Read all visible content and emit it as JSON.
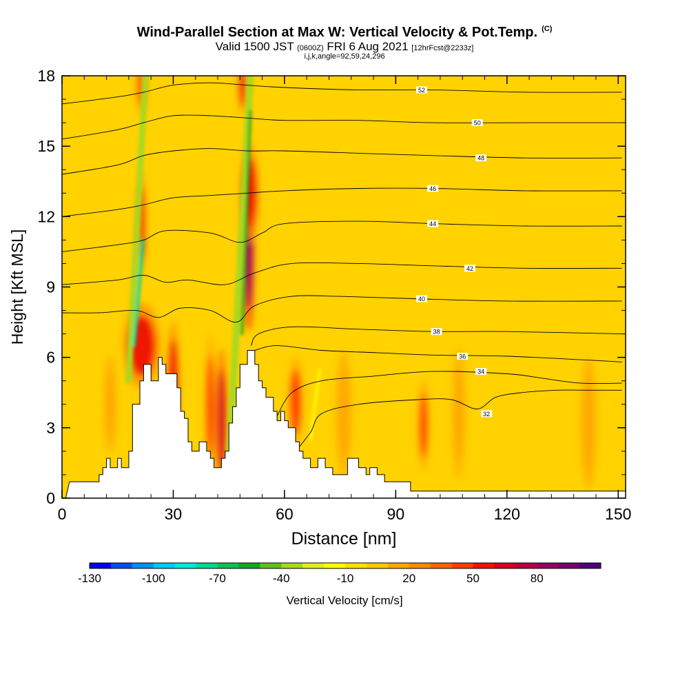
{
  "title": {
    "main": "Wind-Parallel Section at Max W: Vertical Velocity & Pot.Temp.",
    "mark": "(C)",
    "valid_prefix": "Valid 1500 JST",
    "valid_small": "(0600Z)",
    "valid_mid": "FRI 6 Aug 2021",
    "valid_fcst": "[12hrFcst@2233z]",
    "subline": "i,j,k,angle=92,59,24,296"
  },
  "colorbar": {
    "label": "Vertical Velocity [cm/s]",
    "tick_labels": [
      "-130",
      "-100",
      "-70",
      "-40",
      "-10",
      "20",
      "50",
      "80"
    ],
    "colors": [
      "#0000f0",
      "#0050f0",
      "#0090f0",
      "#00c8f0",
      "#00e8d8",
      "#00d890",
      "#10c050",
      "#10a820",
      "#60c020",
      "#a8d820",
      "#e0ec20",
      "#ffff00",
      "#ffe000",
      "#ffc800",
      "#ffa800",
      "#ff8c00",
      "#ff6400",
      "#ff3c00",
      "#f01400",
      "#d80020",
      "#b80040",
      "#960060",
      "#780070",
      "#500080"
    ]
  },
  "chart_data": {
    "type": "heatmap",
    "xlabel": "Distance [nm]",
    "ylabel": "Height [Kft MSL]",
    "xlim": [
      0,
      152
    ],
    "ylim": [
      0,
      18
    ],
    "xticks": [
      "0",
      "30",
      "60",
      "90",
      "120",
      "150"
    ],
    "yticks": [
      "0",
      "3",
      "6",
      "9",
      "12",
      "15",
      "18"
    ],
    "background_color": "#ffd200",
    "terrain": [
      [
        0,
        0
      ],
      [
        1,
        0
      ],
      [
        2,
        0.7
      ],
      [
        10,
        0.7
      ],
      [
        10,
        1
      ],
      [
        11,
        1
      ],
      [
        11,
        1.3
      ],
      [
        12,
        1.3
      ],
      [
        12,
        1.7
      ],
      [
        13,
        1.7
      ],
      [
        13,
        1.3
      ],
      [
        15,
        1.3
      ],
      [
        15,
        1.7
      ],
      [
        16,
        1.7
      ],
      [
        16,
        1.3
      ],
      [
        18,
        1.3
      ],
      [
        18,
        2
      ],
      [
        19,
        2
      ],
      [
        19,
        4
      ],
      [
        21,
        4
      ],
      [
        21,
        5
      ],
      [
        22,
        5
      ],
      [
        22,
        5.7
      ],
      [
        24,
        5.7
      ],
      [
        24,
        5
      ],
      [
        26,
        5
      ],
      [
        26,
        6
      ],
      [
        27,
        6
      ],
      [
        27,
        5.7
      ],
      [
        28,
        5.7
      ],
      [
        28,
        5.3
      ],
      [
        31,
        5.3
      ],
      [
        31,
        4.7
      ],
      [
        32,
        4.7
      ],
      [
        32,
        3.7
      ],
      [
        33,
        3.7
      ],
      [
        33,
        3.4
      ],
      [
        34,
        3.4
      ],
      [
        34,
        2.4
      ],
      [
        35,
        2.4
      ],
      [
        35,
        2
      ],
      [
        37,
        2
      ],
      [
        37,
        2.4
      ],
      [
        39,
        2.4
      ],
      [
        39,
        2
      ],
      [
        40,
        2
      ],
      [
        40,
        1.7
      ],
      [
        41,
        1.7
      ],
      [
        41,
        1.3
      ],
      [
        43,
        1.3
      ],
      [
        43,
        1.7
      ],
      [
        44,
        1.7
      ],
      [
        44,
        2
      ],
      [
        45,
        2
      ],
      [
        45,
        3.2
      ],
      [
        46,
        3.2
      ],
      [
        46,
        3.9
      ],
      [
        47,
        3.9
      ],
      [
        47,
        4.7
      ],
      [
        48,
        4.7
      ],
      [
        48,
        5.7
      ],
      [
        50,
        5.7
      ],
      [
        50,
        6.3
      ],
      [
        52,
        6.3
      ],
      [
        52,
        5.7
      ],
      [
        53,
        5.7
      ],
      [
        53,
        5
      ],
      [
        54,
        5
      ],
      [
        54,
        4.7
      ],
      [
        55,
        4.7
      ],
      [
        55,
        4.3
      ],
      [
        57,
        4.3
      ],
      [
        57,
        3.7
      ],
      [
        58,
        3.7
      ],
      [
        58,
        3.3
      ],
      [
        59,
        3.3
      ],
      [
        59,
        3.7
      ],
      [
        60,
        3.7
      ],
      [
        60,
        3.3
      ],
      [
        61,
        3.3
      ],
      [
        61,
        3
      ],
      [
        63,
        3
      ],
      [
        63,
        2.4
      ],
      [
        64,
        2.4
      ],
      [
        64,
        2
      ],
      [
        65,
        2
      ],
      [
        65,
        1.7
      ],
      [
        67,
        1.7
      ],
      [
        67,
        1.3
      ],
      [
        69,
        1.3
      ],
      [
        69,
        1.7
      ],
      [
        71,
        1.7
      ],
      [
        71,
        1.3
      ],
      [
        73,
        1.3
      ],
      [
        73,
        1
      ],
      [
        77,
        1
      ],
      [
        77,
        1.7
      ],
      [
        80,
        1.7
      ],
      [
        80,
        1.3
      ],
      [
        82,
        1.3
      ],
      [
        82,
        1
      ],
      [
        83,
        1
      ],
      [
        83,
        1.3
      ],
      [
        85,
        1.3
      ],
      [
        85,
        1
      ],
      [
        87,
        1
      ],
      [
        87,
        0.7
      ],
      [
        94,
        0.7
      ],
      [
        94,
        0.3
      ],
      [
        152,
        0.3
      ]
    ],
    "updrafts": [
      {
        "x": 21.5,
        "y": 6.5,
        "rx": 3.6,
        "ry": 1.3,
        "value": 55
      },
      {
        "x": 21.5,
        "y": 11.7,
        "rx": 0.7,
        "ry": 1.6,
        "value": 55
      },
      {
        "x": 21.3,
        "y": 17.6,
        "rx": 0.8,
        "ry": 0.9,
        "value": 45
      },
      {
        "x": 30,
        "y": 4.9,
        "rx": 1.2,
        "ry": 1.9,
        "value": 50
      },
      {
        "x": 40,
        "y": 3.9,
        "rx": 1.0,
        "ry": 2.2,
        "value": 40
      },
      {
        "x": 43,
        "y": 3.3,
        "rx": 1.1,
        "ry": 2.2,
        "value": 60
      },
      {
        "x": 50.3,
        "y": 10.5,
        "rx": 1.0,
        "ry": 2.4,
        "value": 80
      },
      {
        "x": 50.6,
        "y": 13.0,
        "rx": 1.8,
        "ry": 1.5,
        "value": 55
      },
      {
        "x": 48.7,
        "y": 17.6,
        "rx": 0.8,
        "ry": 0.9,
        "value": 50
      },
      {
        "x": 63,
        "y": 4.1,
        "rx": 1.4,
        "ry": 1.4,
        "value": 45
      },
      {
        "x": 97.5,
        "y": 3.1,
        "rx": 1.0,
        "ry": 1.4,
        "value": 40
      },
      {
        "x": 13,
        "y": 4,
        "rx": 1.2,
        "ry": 1.5,
        "value": 15
      },
      {
        "x": 76,
        "y": 3.6,
        "rx": 1.5,
        "ry": 1.9,
        "value": 15
      },
      {
        "x": 107,
        "y": 3.6,
        "rx": 1.2,
        "ry": 2,
        "value": 15
      },
      {
        "x": 142,
        "y": 3.2,
        "rx": 1.5,
        "ry": 2,
        "value": 15
      }
    ],
    "downdrafts": [
      {
        "x1": 17.9,
        "y1": 5.0,
        "x2": 22.5,
        "y2": 18,
        "w": 0.9,
        "value": -40
      },
      {
        "x1": 45.2,
        "y1": 2.0,
        "x2": 50.8,
        "y2": 18,
        "w": 1.0,
        "value": -40
      },
      {
        "x1": 19.4,
        "y1": 6.5,
        "x2": 21.8,
        "y2": 11.0,
        "w": 0.5,
        "value": -75
      },
      {
        "x1": 48.5,
        "y1": 7.0,
        "x2": 50.8,
        "y2": 16.5,
        "w": 0.4,
        "value": -60
      },
      {
        "x1": 67,
        "y1": 2.5,
        "x2": 69.5,
        "y2": 5.5,
        "w": 0.4,
        "value": -20
      }
    ],
    "isentropes": [
      {
        "label": "32",
        "label_x": 114.5,
        "label_y": 3.6,
        "points": [
          [
            62,
            1.8
          ],
          [
            67,
            2.8
          ],
          [
            70,
            3.6
          ],
          [
            80,
            4.0
          ],
          [
            96,
            4.2
          ],
          [
            105,
            4.2
          ],
          [
            112,
            3.8
          ],
          [
            117,
            4.3
          ],
          [
            124,
            4.5
          ],
          [
            134,
            4.6
          ],
          [
            142,
            4.6
          ],
          [
            151,
            4.6
          ]
        ]
      },
      {
        "label": "34",
        "label_x": 113,
        "label_y": 5.4,
        "points": [
          [
            58,
            3.5
          ],
          [
            62,
            4.5
          ],
          [
            70,
            5.0
          ],
          [
            84,
            5.2
          ],
          [
            100,
            5.4
          ],
          [
            120,
            5.3
          ],
          [
            130,
            5.1
          ],
          [
            140,
            4.9
          ],
          [
            151,
            4.9
          ]
        ]
      },
      {
        "label": "36",
        "label_x": 108,
        "label_y": 6.05,
        "points": [
          [
            52,
            6.3
          ],
          [
            58,
            6.5
          ],
          [
            70,
            6.3
          ],
          [
            85,
            6.2
          ],
          [
            100,
            6.1
          ],
          [
            120,
            6.05
          ],
          [
            140,
            5.9
          ],
          [
            151,
            5.8
          ]
        ]
      },
      {
        "label": "38",
        "label_x": 101,
        "label_y": 7.1,
        "points": [
          [
            51,
            6.5
          ],
          [
            53,
            7.0
          ],
          [
            62,
            7.3
          ],
          [
            80,
            7.2
          ],
          [
            100,
            7.1
          ],
          [
            120,
            7.1
          ],
          [
            151,
            7.0
          ]
        ]
      },
      {
        "label": "40",
        "label_x": 97,
        "label_y": 8.5,
        "points": [
          [
            0,
            7.9
          ],
          [
            10,
            7.9
          ],
          [
            20,
            8.0
          ],
          [
            26,
            7.7
          ],
          [
            32,
            8.1
          ],
          [
            40,
            8.0
          ],
          [
            47,
            7.5
          ],
          [
            52,
            8.2
          ],
          [
            62,
            8.6
          ],
          [
            75,
            8.6
          ],
          [
            95,
            8.5
          ],
          [
            120,
            8.4
          ],
          [
            151,
            8.4
          ]
        ]
      },
      {
        "label": "42",
        "label_x": 110,
        "label_y": 9.8,
        "points": [
          [
            0,
            9.1
          ],
          [
            15,
            9.3
          ],
          [
            22,
            9.5
          ],
          [
            28,
            9.2
          ],
          [
            34,
            9.3
          ],
          [
            44,
            9.1
          ],
          [
            52,
            9.6
          ],
          [
            62,
            10.0
          ],
          [
            80,
            10.0
          ],
          [
            100,
            9.9
          ],
          [
            125,
            9.8
          ],
          [
            151,
            9.8
          ]
        ]
      },
      {
        "label": "44",
        "label_x": 100,
        "label_y": 11.7,
        "points": [
          [
            0,
            10.5
          ],
          [
            15,
            10.8
          ],
          [
            22,
            11.0
          ],
          [
            28,
            11.4
          ],
          [
            40,
            11.3
          ],
          [
            48,
            10.9
          ],
          [
            54,
            11.3
          ],
          [
            60,
            11.7
          ],
          [
            80,
            11.8
          ],
          [
            100,
            11.7
          ],
          [
            125,
            11.6
          ],
          [
            151,
            11.6
          ]
        ]
      },
      {
        "label": "46",
        "label_x": 100,
        "label_y": 13.2,
        "points": [
          [
            0,
            12.0
          ],
          [
            15,
            12.3
          ],
          [
            22,
            12.5
          ],
          [
            30,
            12.8
          ],
          [
            40,
            12.9
          ],
          [
            50,
            13.0
          ],
          [
            60,
            13.1
          ],
          [
            80,
            13.2
          ],
          [
            100,
            13.2
          ],
          [
            125,
            13.1
          ],
          [
            151,
            13.1
          ]
        ]
      },
      {
        "label": "48",
        "label_x": 113,
        "label_y": 14.5,
        "points": [
          [
            0,
            13.8
          ],
          [
            15,
            14.2
          ],
          [
            22,
            14.6
          ],
          [
            30,
            14.8
          ],
          [
            40,
            14.9
          ],
          [
            50,
            14.8
          ],
          [
            60,
            14.8
          ],
          [
            80,
            14.7
          ],
          [
            100,
            14.6
          ],
          [
            125,
            14.5
          ],
          [
            151,
            14.5
          ]
        ]
      },
      {
        "label": "50",
        "label_x": 112,
        "label_y": 16.0,
        "points": [
          [
            0,
            15.3
          ],
          [
            15,
            15.7
          ],
          [
            22,
            16.0
          ],
          [
            30,
            16.3
          ],
          [
            40,
            16.3
          ],
          [
            50,
            16.2
          ],
          [
            60,
            16.1
          ],
          [
            80,
            16.1
          ],
          [
            100,
            16.0
          ],
          [
            125,
            16.0
          ],
          [
            151,
            16.0
          ]
        ]
      },
      {
        "label": "52",
        "label_x": 97,
        "label_y": 17.4,
        "points": [
          [
            0,
            16.8
          ],
          [
            15,
            17.1
          ],
          [
            22,
            17.3
          ],
          [
            30,
            17.6
          ],
          [
            40,
            17.7
          ],
          [
            50,
            17.6
          ],
          [
            60,
            17.5
          ],
          [
            80,
            17.4
          ],
          [
            100,
            17.4
          ],
          [
            125,
            17.3
          ],
          [
            151,
            17.3
          ]
        ]
      }
    ]
  }
}
